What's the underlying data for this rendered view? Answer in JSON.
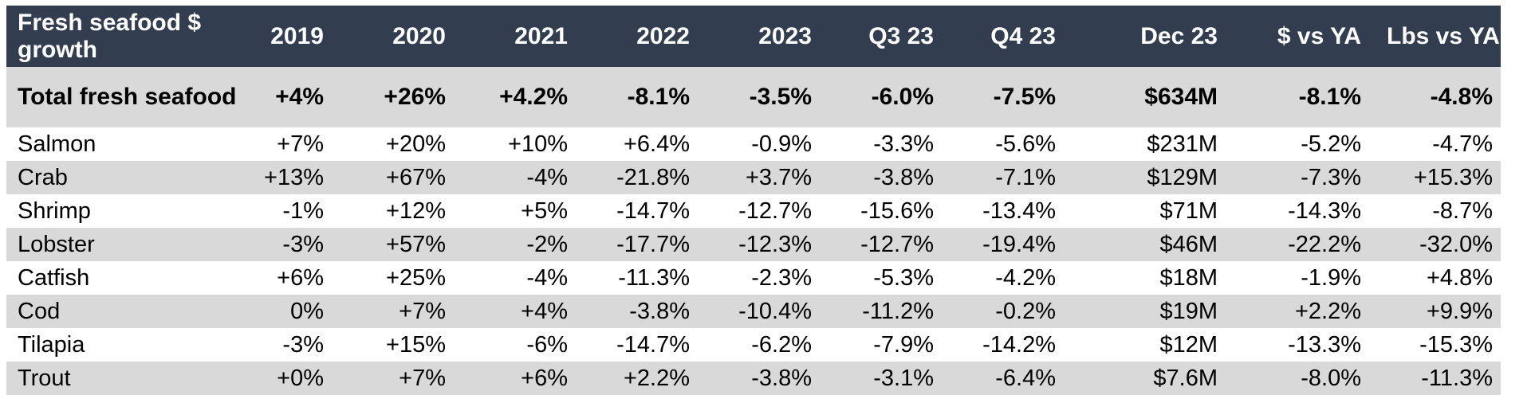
{
  "table": {
    "header": {
      "label": "Fresh seafood $ growth",
      "columns": [
        "2019",
        "2020",
        "2021",
        "2022",
        "2023",
        "Q3 23",
        "Q4 23",
        "Dec 23",
        "$ vs YA",
        "Lbs vs YA"
      ]
    },
    "rows": [
      {
        "label": "Total fresh seafood",
        "values": [
          "+4%",
          "+26%",
          "+4.2%",
          "-8.1%",
          "-3.5%",
          "-6.0%",
          "-7.5%",
          "$634M",
          "-8.1%",
          "-4.8%"
        ]
      },
      {
        "label": "Salmon",
        "values": [
          "+7%",
          "+20%",
          "+10%",
          "+6.4%",
          "-0.9%",
          "-3.3%",
          "-5.6%",
          "$231M",
          "-5.2%",
          "-4.7%"
        ]
      },
      {
        "label": "Crab",
        "values": [
          "+13%",
          "+67%",
          "-4%",
          "-21.8%",
          "+3.7%",
          "-3.8%",
          "-7.1%",
          "$129M",
          "-7.3%",
          "+15.3%"
        ]
      },
      {
        "label": "Shrimp",
        "values": [
          "-1%",
          "+12%",
          "+5%",
          "-14.7%",
          "-12.7%",
          "-15.6%",
          "-13.4%",
          "$71M",
          "-14.3%",
          "-8.7%"
        ]
      },
      {
        "label": "Lobster",
        "values": [
          "-3%",
          "+57%",
          "-2%",
          "-17.7%",
          "-12.3%",
          "-12.7%",
          "-19.4%",
          "$46M",
          "-22.2%",
          "-32.0%"
        ]
      },
      {
        "label": "Catfish",
        "values": [
          "+6%",
          "+25%",
          "-4%",
          "-11.3%",
          "-2.3%",
          "-5.3%",
          "-4.2%",
          "$18M",
          "-1.9%",
          "+4.8%"
        ]
      },
      {
        "label": "Cod",
        "values": [
          "0%",
          "+7%",
          "+4%",
          "-3.8%",
          "-10.4%",
          "-11.2%",
          "-0.2%",
          "$19M",
          "+2.2%",
          "+9.9%"
        ]
      },
      {
        "label": "Tilapia",
        "values": [
          "-3%",
          "+15%",
          "-6%",
          "-14.7%",
          "-6.2%",
          "-7.9%",
          "-14.2%",
          "$12M",
          "-13.3%",
          "-15.3%"
        ]
      },
      {
        "label": "Trout",
        "values": [
          "+0%",
          "+7%",
          "+6%",
          "+2.2%",
          "-3.8%",
          "-3.1%",
          "-6.4%",
          "$7.6M",
          "-8.0%",
          "-11.3%"
        ]
      }
    ]
  },
  "colors": {
    "header_bg": "#323d4f",
    "header_text": "#ffffff",
    "shade_row": "#d9d9d9",
    "plain_row": "#ffffff"
  }
}
